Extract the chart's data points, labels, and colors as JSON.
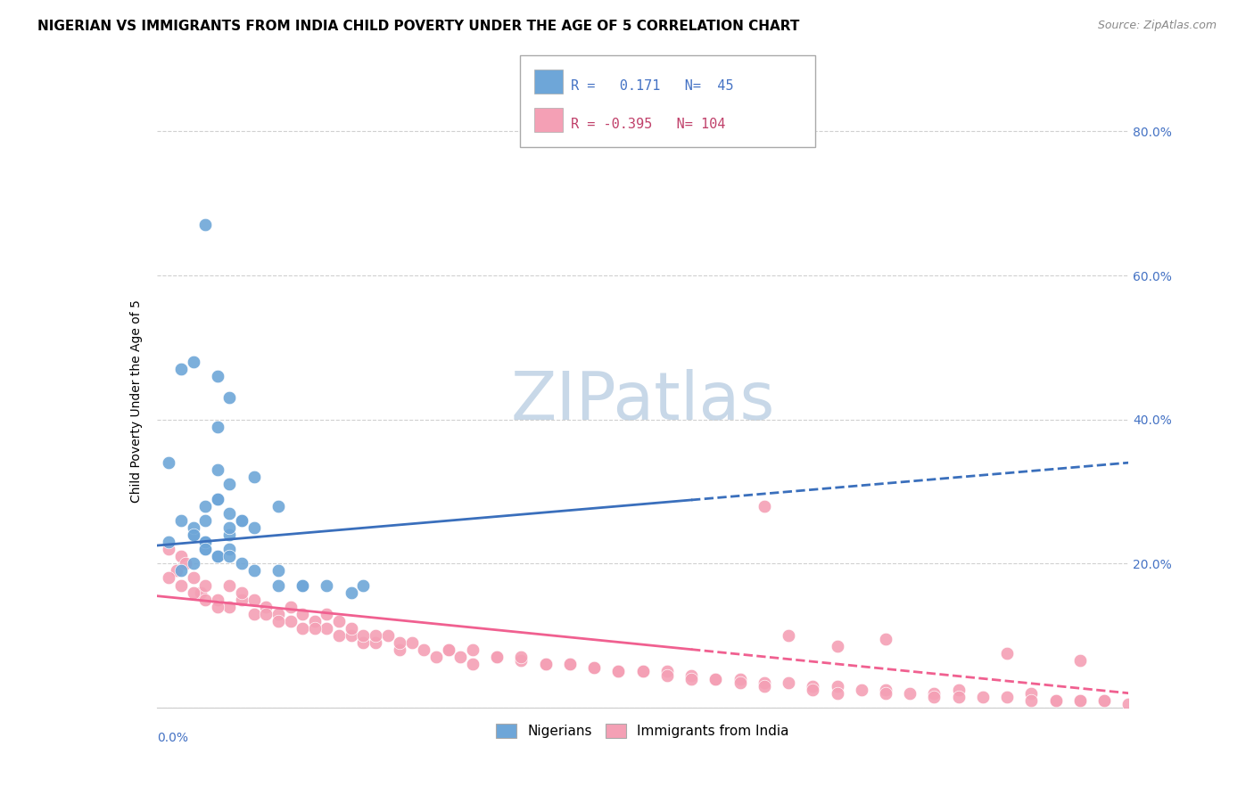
{
  "title": "NIGERIAN VS IMMIGRANTS FROM INDIA CHILD POVERTY UNDER THE AGE OF 5 CORRELATION CHART",
  "source": "Source: ZipAtlas.com",
  "ylabel": "Child Poverty Under the Age of 5",
  "xmin": 0.0,
  "xmax": 0.4,
  "ymin": 0.0,
  "ymax": 0.85,
  "blue_R": 0.171,
  "blue_N": 45,
  "pink_R": -0.395,
  "pink_N": 104,
  "blue_color": "#6ea6d8",
  "pink_color": "#f4a0b5",
  "blue_line_color": "#3a6fbc",
  "pink_line_color": "#f06090",
  "watermark": "ZIPatlas",
  "legend_label_blue": "Nigerians",
  "legend_label_pink": "Immigrants from India",
  "blue_scatter_x": [
    0.015,
    0.02,
    0.025,
    0.03,
    0.035,
    0.04,
    0.02,
    0.025,
    0.015,
    0.01,
    0.005,
    0.03,
    0.025,
    0.04,
    0.05,
    0.025,
    0.03,
    0.015,
    0.02,
    0.025,
    0.03,
    0.035,
    0.01,
    0.015,
    0.02,
    0.005,
    0.02,
    0.03,
    0.04,
    0.05,
    0.06,
    0.07,
    0.08,
    0.085,
    0.02,
    0.025,
    0.015,
    0.01,
    0.03,
    0.05,
    0.06,
    0.025,
    0.03,
    0.035,
    0.02
  ],
  "blue_scatter_y": [
    0.24,
    0.26,
    0.29,
    0.27,
    0.26,
    0.25,
    0.22,
    0.21,
    0.2,
    0.19,
    0.23,
    0.31,
    0.33,
    0.32,
    0.28,
    0.39,
    0.24,
    0.25,
    0.23,
    0.21,
    0.22,
    0.2,
    0.26,
    0.24,
    0.23,
    0.34,
    0.22,
    0.21,
    0.19,
    0.19,
    0.17,
    0.17,
    0.16,
    0.17,
    0.67,
    0.46,
    0.48,
    0.47,
    0.43,
    0.17,
    0.17,
    0.29,
    0.25,
    0.26,
    0.28
  ],
  "pink_scatter_x": [
    0.005,
    0.008,
    0.01,
    0.012,
    0.015,
    0.018,
    0.02,
    0.025,
    0.03,
    0.035,
    0.04,
    0.045,
    0.05,
    0.055,
    0.06,
    0.065,
    0.07,
    0.075,
    0.08,
    0.085,
    0.09,
    0.095,
    0.1,
    0.105,
    0.11,
    0.115,
    0.12,
    0.125,
    0.13,
    0.14,
    0.15,
    0.16,
    0.17,
    0.18,
    0.19,
    0.2,
    0.21,
    0.22,
    0.23,
    0.24,
    0.25,
    0.26,
    0.27,
    0.28,
    0.29,
    0.3,
    0.31,
    0.32,
    0.33,
    0.34,
    0.35,
    0.36,
    0.37,
    0.38,
    0.39,
    0.005,
    0.01,
    0.015,
    0.02,
    0.025,
    0.03,
    0.035,
    0.04,
    0.045,
    0.05,
    0.055,
    0.06,
    0.065,
    0.07,
    0.075,
    0.08,
    0.085,
    0.09,
    0.1,
    0.12,
    0.13,
    0.14,
    0.15,
    0.16,
    0.17,
    0.18,
    0.19,
    0.2,
    0.21,
    0.22,
    0.23,
    0.24,
    0.25,
    0.27,
    0.28,
    0.3,
    0.32,
    0.33,
    0.36,
    0.37,
    0.38,
    0.39,
    0.4,
    0.25,
    0.26,
    0.28,
    0.3,
    0.35,
    0.38
  ],
  "pink_scatter_y": [
    0.22,
    0.19,
    0.21,
    0.2,
    0.18,
    0.16,
    0.17,
    0.15,
    0.14,
    0.15,
    0.13,
    0.14,
    0.13,
    0.12,
    0.11,
    0.12,
    0.11,
    0.1,
    0.1,
    0.09,
    0.09,
    0.1,
    0.08,
    0.09,
    0.08,
    0.07,
    0.08,
    0.07,
    0.06,
    0.07,
    0.065,
    0.06,
    0.06,
    0.055,
    0.05,
    0.05,
    0.05,
    0.045,
    0.04,
    0.04,
    0.035,
    0.035,
    0.03,
    0.03,
    0.025,
    0.025,
    0.02,
    0.02,
    0.025,
    0.015,
    0.015,
    0.02,
    0.01,
    0.01,
    0.01,
    0.18,
    0.17,
    0.16,
    0.15,
    0.14,
    0.17,
    0.16,
    0.15,
    0.13,
    0.12,
    0.14,
    0.13,
    0.11,
    0.13,
    0.12,
    0.11,
    0.1,
    0.1,
    0.09,
    0.08,
    0.08,
    0.07,
    0.07,
    0.06,
    0.06,
    0.055,
    0.05,
    0.05,
    0.045,
    0.04,
    0.04,
    0.035,
    0.03,
    0.025,
    0.02,
    0.02,
    0.015,
    0.015,
    0.01,
    0.01,
    0.01,
    0.01,
    0.005,
    0.28,
    0.1,
    0.085,
    0.095,
    0.075,
    0.065
  ],
  "blue_trend_y_start": 0.225,
  "blue_trend_y_end": 0.34,
  "blue_trend_solid_x_end": 0.22,
  "pink_trend_y_start": 0.155,
  "pink_trend_y_end": 0.02,
  "pink_trend_solid_x_end": 0.22,
  "grid_color": "#d0d0d0",
  "bg_color": "#ffffff",
  "watermark_color": "#c8d8e8",
  "title_fontsize": 11,
  "axis_label_fontsize": 10,
  "tick_fontsize": 10
}
